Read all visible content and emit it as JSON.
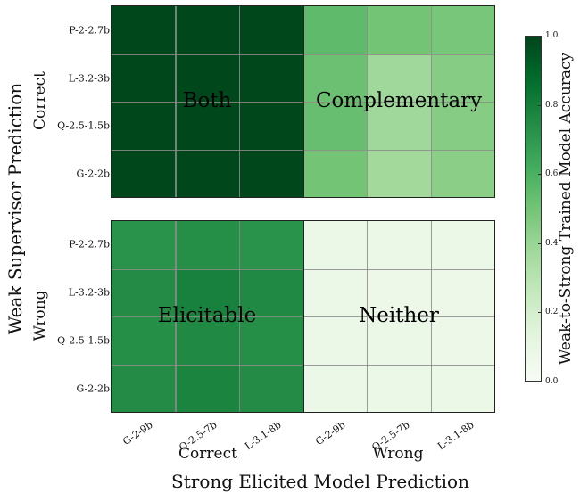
{
  "chart_data": {
    "type": "heatmap",
    "title": "",
    "xlabel": "Strong Elicited Model Prediction",
    "ylabel": "Weak Supervisor Prediction",
    "x_groups": [
      "Correct",
      "Wrong"
    ],
    "y_groups": [
      "Correct",
      "Wrong"
    ],
    "x_ticks": [
      "G-2-9b",
      "Q-2.5-7b",
      "L-3.1-8b",
      "G-2-9b",
      "Q-2.5-7b",
      "L-3.1-8b"
    ],
    "y_ticks": [
      "P-2-2.7b",
      "L-3.2-3b",
      "Q-2.5-1.5b",
      "G-2-2b"
    ],
    "quadrant_labels": {
      "correct_correct": "Both",
      "correct_wrong": "Complementary",
      "wrong_correct": "Elicitable",
      "wrong_wrong": "Neither"
    },
    "colorbar": {
      "label": "Weak-to-Strong Trained Model Accuracy",
      "cmap": "Greens",
      "vmin": 0.0,
      "vmax": 1.0,
      "ticks": [
        "0.0",
        "0.2",
        "0.4",
        "0.6",
        "0.8",
        "1.0"
      ]
    },
    "panels": [
      {
        "name": "Weak Correct",
        "values": [
          [
            0.99,
            0.99,
            0.99,
            0.55,
            0.5,
            0.49
          ],
          [
            0.99,
            0.99,
            0.99,
            0.52,
            0.38,
            0.45
          ],
          [
            0.99,
            0.99,
            0.99,
            0.53,
            0.38,
            0.45
          ],
          [
            0.99,
            0.99,
            0.99,
            0.5,
            0.37,
            0.44
          ]
        ]
      },
      {
        "name": "Weak Wrong",
        "values": [
          [
            0.72,
            0.74,
            0.72,
            0.08,
            0.08,
            0.08
          ],
          [
            0.75,
            0.79,
            0.76,
            0.08,
            0.07,
            0.07
          ],
          [
            0.74,
            0.76,
            0.74,
            0.08,
            0.08,
            0.07
          ],
          [
            0.75,
            0.78,
            0.75,
            0.08,
            0.08,
            0.08
          ]
        ]
      }
    ]
  },
  "labels": {
    "both": "Both",
    "complementary": "Complementary",
    "elicitable": "Elicitable",
    "neither": "Neither",
    "x_group_correct": "Correct",
    "x_group_wrong": "Wrong",
    "y_group_correct": "Correct",
    "y_group_wrong": "Wrong",
    "xlabel": "Strong Elicited Model Prediction",
    "ylabel": "Weak Supervisor Prediction",
    "cb_label": "Weak-to-Strong Trained Model Accuracy",
    "yticks": [
      "P-2-2.7b",
      "L-3.2-3b",
      "Q-2.5-1.5b",
      "G-2-2b"
    ],
    "xticks": [
      "G-2-9b",
      "Q-2.5-7b",
      "L-3.1-8b",
      "G-2-9b",
      "Q-2.5-7b",
      "L-3.1-8b"
    ],
    "cb_ticks": [
      "0.0",
      "0.2",
      "0.4",
      "0.6",
      "0.8",
      "1.0"
    ]
  }
}
